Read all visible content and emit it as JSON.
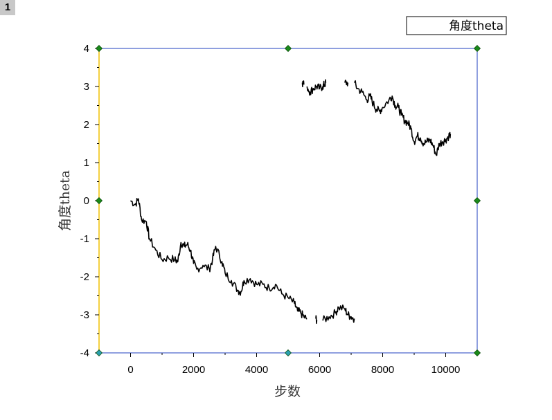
{
  "layer_tag": "1",
  "chart_data": {
    "type": "line",
    "xlabel": "步数",
    "ylabel": "角度theta",
    "xlim": [
      -1000,
      11000
    ],
    "ylim": [
      -4,
      4
    ],
    "xticks": [
      0,
      2000,
      4000,
      6000,
      8000,
      10000
    ],
    "yticks": [
      -4,
      -3,
      -2,
      -1,
      0,
      1,
      2,
      3,
      4
    ],
    "legend": {
      "position": "top-right",
      "entries": [
        "角度theta"
      ]
    },
    "grid": false,
    "series": [
      {
        "name": "角度theta",
        "color": "#000000",
        "segments": [
          [
            [
              0,
              0.0
            ],
            [
              150,
              -0.1
            ],
            [
              250,
              0.05
            ],
            [
              350,
              -0.5
            ],
            [
              500,
              -0.55
            ],
            [
              600,
              -1.0
            ],
            [
              800,
              -1.3
            ],
            [
              1000,
              -1.55
            ],
            [
              1200,
              -1.5
            ],
            [
              1400,
              -1.55
            ],
            [
              1500,
              -1.6
            ],
            [
              1600,
              -1.1
            ],
            [
              1700,
              -1.2
            ],
            [
              1800,
              -1.15
            ],
            [
              1900,
              -1.3
            ],
            [
              2000,
              -1.65
            ],
            [
              2100,
              -1.8
            ],
            [
              2300,
              -1.7
            ],
            [
              2500,
              -1.8
            ],
            [
              2600,
              -1.55
            ],
            [
              2700,
              -1.2
            ],
            [
              2900,
              -1.6
            ],
            [
              3000,
              -1.9
            ],
            [
              3200,
              -2.1
            ],
            [
              3400,
              -2.35
            ],
            [
              3500,
              -2.4
            ],
            [
              3600,
              -2.1
            ],
            [
              3800,
              -2.05
            ],
            [
              4000,
              -2.2
            ],
            [
              4200,
              -2.2
            ],
            [
              4400,
              -2.3
            ],
            [
              4600,
              -2.2
            ],
            [
              4800,
              -2.45
            ],
            [
              5000,
              -2.55
            ],
            [
              5200,
              -2.7
            ],
            [
              5300,
              -2.9
            ],
            [
              5400,
              -2.95
            ],
            [
              5500,
              -3.05
            ],
            [
              5600,
              -3.1
            ]
          ],
          [
            [
              5880,
              -3.1
            ],
            [
              5920,
              -3.15
            ]
          ],
          [
            [
              6100,
              -3.15
            ],
            [
              6300,
              -3.05
            ],
            [
              6500,
              -2.95
            ],
            [
              6600,
              -2.8
            ],
            [
              6800,
              -2.85
            ],
            [
              6900,
              -3.0
            ],
            [
              7000,
              -3.05
            ],
            [
              7100,
              -3.1
            ]
          ],
          [
            [
              5450,
              3.1
            ],
            [
              5500,
              3.05
            ]
          ],
          [
            [
              5600,
              3.0
            ],
            [
              5700,
              2.85
            ],
            [
              5800,
              2.95
            ],
            [
              5900,
              3.0
            ],
            [
              6000,
              2.95
            ],
            [
              6100,
              3.0
            ],
            [
              6150,
              3.05
            ],
            [
              6200,
              3.1
            ]
          ],
          [
            [
              6800,
              3.1
            ],
            [
              6900,
              3.1
            ]
          ],
          [
            [
              7100,
              3.1
            ],
            [
              7200,
              2.95
            ],
            [
              7350,
              2.85
            ],
            [
              7500,
              2.65
            ],
            [
              7600,
              2.75
            ],
            [
              7700,
              2.55
            ],
            [
              7800,
              2.4
            ],
            [
              7900,
              2.35
            ],
            [
              8000,
              2.45
            ],
            [
              8200,
              2.65
            ],
            [
              8300,
              2.75
            ],
            [
              8400,
              2.5
            ],
            [
              8500,
              2.45
            ],
            [
              8600,
              2.25
            ],
            [
              8700,
              2.1
            ],
            [
              8800,
              2.05
            ],
            [
              8900,
              1.9
            ],
            [
              9000,
              1.55
            ],
            [
              9100,
              1.7
            ],
            [
              9200,
              1.65
            ],
            [
              9300,
              1.5
            ],
            [
              9400,
              1.55
            ],
            [
              9500,
              1.6
            ],
            [
              9600,
              1.45
            ],
            [
              9700,
              1.2
            ],
            [
              9800,
              1.5
            ],
            [
              9900,
              1.55
            ],
            [
              10000,
              1.6
            ],
            [
              10100,
              1.7
            ],
            [
              10150,
              1.75
            ]
          ]
        ]
      }
    ]
  }
}
